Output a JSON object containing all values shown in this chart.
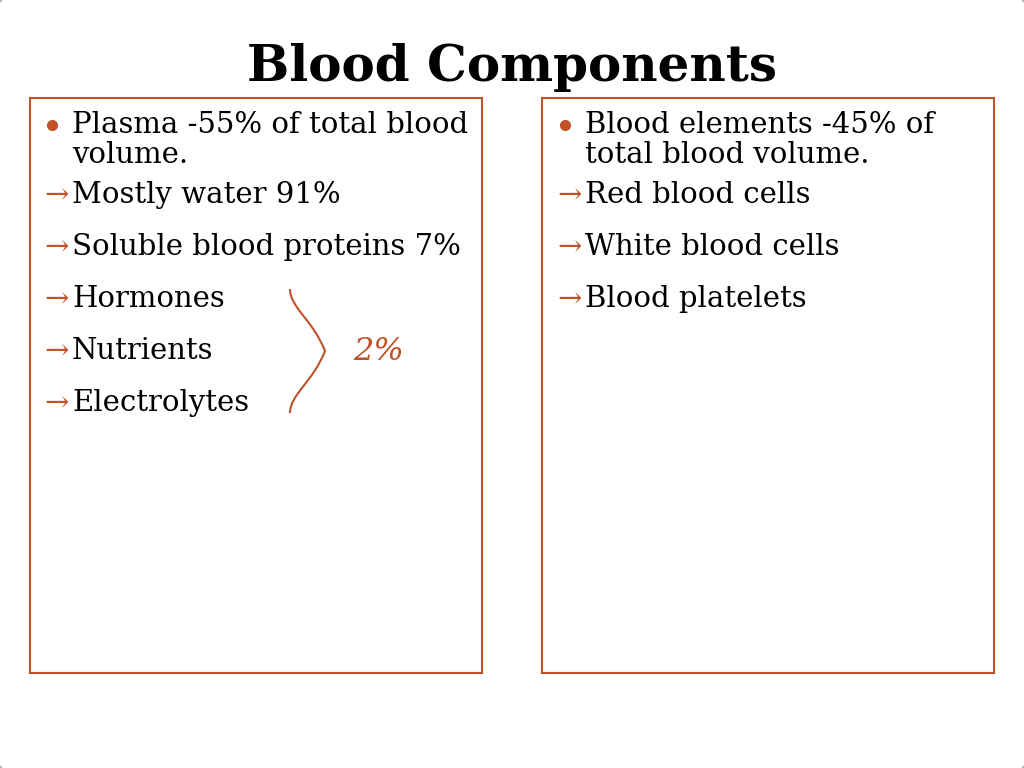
{
  "title": "Blood Components",
  "title_fontsize": 36,
  "title_fontweight": "bold",
  "title_color": "#000000",
  "bg_color": "#ffffff",
  "border_color": "#b0b0b0",
  "box_border_color": "#c0522a",
  "bullet_color": "#c0522a",
  "arrow_color": "#c0522a",
  "text_color": "#000000",
  "left_box": {
    "bullet_line1": "Plasma -55% of total blood",
    "bullet_line2": "volume.",
    "items": [
      "Mostly water 91%",
      "Soluble blood proteins 7%",
      "Hormones",
      "Nutrients",
      "Electrolytes"
    ],
    "brace_label": "2%"
  },
  "right_box": {
    "bullet_line1": "Blood elements -45% of",
    "bullet_line2": "total blood volume.",
    "items": [
      "Red blood cells",
      "White blood cells",
      "Blood platelets"
    ]
  },
  "main_fontsize": 21,
  "sub_fontsize": 21
}
